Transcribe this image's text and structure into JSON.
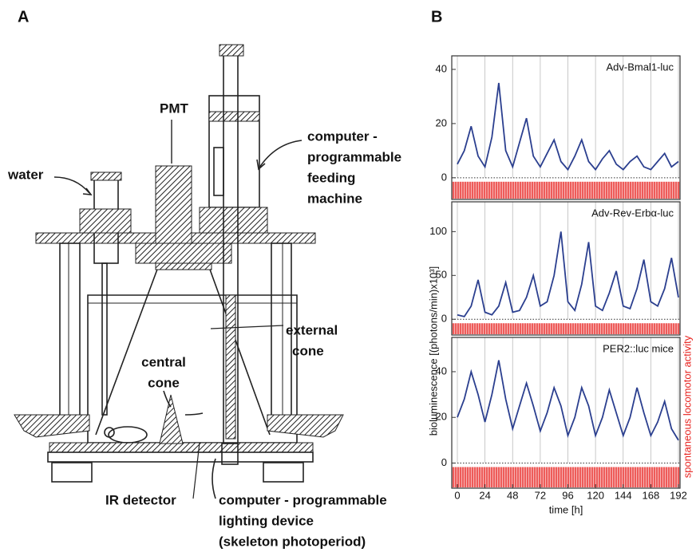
{
  "panel_a": {
    "label": "A",
    "labels": {
      "pmt": [
        "PMT"
      ],
      "water": [
        "water"
      ],
      "feeding": [
        "computer -",
        "programmable",
        "feeding",
        "machine"
      ],
      "external_cone": [
        "external",
        "cone"
      ],
      "central_cone": [
        "central",
        "cone"
      ],
      "ir_detector": [
        "IR detector"
      ],
      "lighting": [
        "computer - programmable",
        "lighting device",
        "(skeleton photoperiod)"
      ]
    }
  },
  "panel_b": {
    "label": "B",
    "ylabel": "bioluminescence [(photons/min)x10³]",
    "y2label": "spontaneous locomotor activity",
    "xlabel": "time [h]"
  },
  "chart_data": [
    {
      "type": "line",
      "title": "Adv-Bmal1-luc",
      "color": "#2b3f8f",
      "x": [
        0,
        6,
        12,
        18,
        24,
        30,
        36,
        42,
        48,
        54,
        60,
        66,
        72,
        78,
        84,
        90,
        96,
        102,
        108,
        114,
        120,
        126,
        132,
        138,
        144,
        150,
        156,
        162,
        168,
        174,
        180,
        186,
        192
      ],
      "values": [
        5,
        10,
        19,
        8,
        4,
        15,
        35,
        10,
        4,
        13,
        22,
        8,
        4,
        9,
        14,
        6,
        3,
        8,
        14,
        6,
        3,
        7,
        10,
        5,
        3,
        6,
        8,
        4,
        3,
        6,
        9,
        4,
        6
      ],
      "xlim": [
        0,
        192
      ],
      "xticks": [
        0,
        24,
        48,
        72,
        96,
        120,
        144,
        168,
        192
      ],
      "ylim": [
        -8,
        45
      ],
      "yticks": [
        0,
        20,
        40
      ],
      "grid": true
    },
    {
      "type": "line",
      "title": "Adv-Rev-Erbα-luc",
      "color": "#2b3f8f",
      "x": [
        0,
        6,
        12,
        18,
        24,
        30,
        36,
        42,
        48,
        54,
        60,
        66,
        72,
        78,
        84,
        90,
        96,
        102,
        108,
        114,
        120,
        126,
        132,
        138,
        144,
        150,
        156,
        162,
        168,
        174,
        180,
        186,
        192
      ],
      "values": [
        5,
        3,
        15,
        45,
        8,
        5,
        15,
        42,
        8,
        10,
        25,
        50,
        15,
        20,
        50,
        100,
        20,
        10,
        40,
        88,
        15,
        10,
        30,
        55,
        15,
        12,
        35,
        68,
        20,
        15,
        35,
        70,
        25
      ],
      "xlim": [
        0,
        192
      ],
      "xticks": [
        0,
        24,
        48,
        72,
        96,
        120,
        144,
        168,
        192
      ],
      "ylim": [
        -18,
        134
      ],
      "yticks": [
        0,
        50,
        100
      ],
      "grid": true
    },
    {
      "type": "line",
      "title": "PER2::luc mice",
      "color": "#2b3f8f",
      "x": [
        0,
        6,
        12,
        18,
        24,
        30,
        36,
        42,
        48,
        54,
        60,
        66,
        72,
        78,
        84,
        90,
        96,
        102,
        108,
        114,
        120,
        126,
        132,
        138,
        144,
        150,
        156,
        162,
        168,
        174,
        180,
        186,
        192
      ],
      "values": [
        20,
        28,
        40,
        30,
        18,
        30,
        45,
        28,
        15,
        25,
        35,
        25,
        14,
        22,
        33,
        25,
        12,
        20,
        33,
        25,
        12,
        20,
        32,
        22,
        12,
        20,
        33,
        22,
        12,
        18,
        27,
        15,
        10
      ],
      "xlim": [
        0,
        192
      ],
      "xticks": [
        0,
        24,
        48,
        72,
        96,
        120,
        144,
        168,
        192
      ],
      "ylim": [
        -11,
        55
      ],
      "yticks": [
        0,
        20,
        40
      ],
      "grid": true
    }
  ]
}
